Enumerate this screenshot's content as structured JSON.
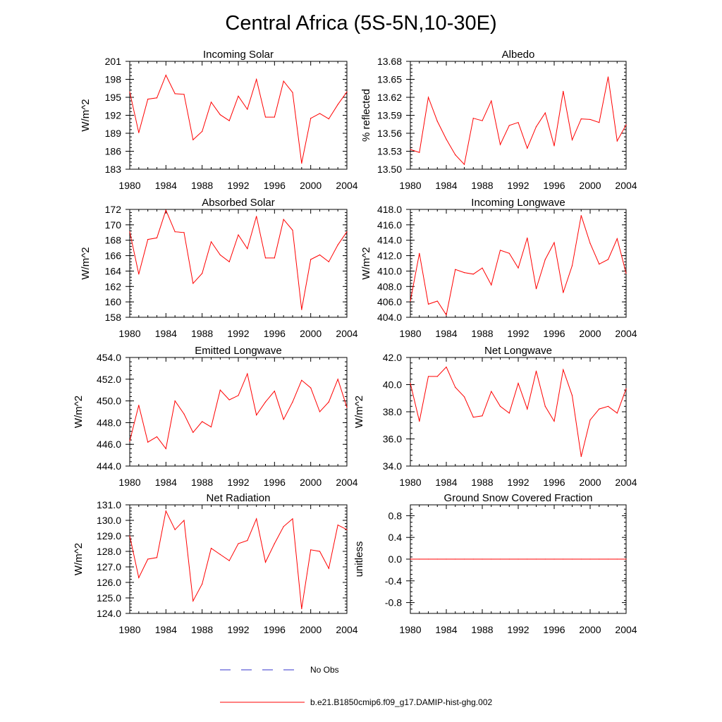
{
  "figure_title": "Central Africa (5S-5N,10-30E)",
  "colors": {
    "model_line": "#ff0000",
    "obs_line": "#3333cc",
    "axes": "#000000"
  },
  "legend": {
    "obs_label": "No Obs",
    "model_label": "b.e21.B1850cmip6.f09_g17.DAMIP-hist-ghg.002"
  },
  "chart_data": [
    {
      "type": "line",
      "title": "Incoming Solar",
      "ylabel": "W/m^2",
      "xlim": [
        1980,
        2004
      ],
      "ylim": [
        183,
        201
      ],
      "xticks": [
        "1980",
        "1984",
        "1988",
        "1992",
        "1996",
        "2000",
        "2004"
      ],
      "yticks": [
        "183",
        "186",
        "189",
        "192",
        "195",
        "198",
        "201"
      ],
      "x": [
        1980,
        1981,
        1982,
        1983,
        1984,
        1985,
        1986,
        1987,
        1988,
        1989,
        1990,
        1991,
        1992,
        1993,
        1994,
        1995,
        1996,
        1997,
        1998,
        1999,
        2000,
        2001,
        2002,
        2003,
        2004
      ],
      "series": [
        {
          "values": [
            195.9,
            189.1,
            194.7,
            194.9,
            198.7,
            195.6,
            195.5,
            187.9,
            189.3,
            194.2,
            192.1,
            191.1,
            195.2,
            193.0,
            198.0,
            191.7,
            191.7,
            197.7,
            195.8,
            184.0,
            191.5,
            192.3,
            191.4,
            193.8,
            195.9
          ]
        }
      ]
    },
    {
      "type": "line",
      "title": "Albedo",
      "ylabel": "% reflected",
      "xlim": [
        1980,
        2004
      ],
      "ylim": [
        13.5,
        13.68
      ],
      "xticks": [
        "1980",
        "1984",
        "1988",
        "1992",
        "1996",
        "2000",
        "2004"
      ],
      "yticks": [
        "13.50",
        "13.53",
        "13.56",
        "13.59",
        "13.62",
        "13.65",
        "13.68"
      ],
      "x": [
        1980,
        1981,
        1982,
        1983,
        1984,
        1985,
        1986,
        1987,
        1988,
        1989,
        1990,
        1991,
        1992,
        1993,
        1994,
        1995,
        1996,
        1997,
        1998,
        1999,
        2000,
        2001,
        2002,
        2003,
        2004
      ],
      "series": [
        {
          "values": [
            13.533,
            13.528,
            13.62,
            13.58,
            13.55,
            13.524,
            13.508,
            13.585,
            13.581,
            13.614,
            13.541,
            13.573,
            13.578,
            13.535,
            13.571,
            13.594,
            13.539,
            13.63,
            13.549,
            13.584,
            13.583,
            13.578,
            13.654,
            13.547,
            13.574
          ]
        }
      ]
    },
    {
      "type": "line",
      "title": "Absorbed Solar",
      "ylabel": "W/m^2",
      "xlim": [
        1980,
        2004
      ],
      "ylim": [
        158,
        172
      ],
      "xticks": [
        "1980",
        "1984",
        "1988",
        "1992",
        "1996",
        "2000",
        "2004"
      ],
      "yticks": [
        "158",
        "160",
        "162",
        "164",
        "166",
        "168",
        "170",
        "172"
      ],
      "x": [
        1980,
        1981,
        1982,
        1983,
        1984,
        1985,
        1986,
        1987,
        1988,
        1989,
        1990,
        1991,
        1992,
        1993,
        1994,
        1995,
        1996,
        1997,
        1998,
        1999,
        2000,
        2001,
        2002,
        2003,
        2004
      ],
      "series": [
        {
          "values": [
            169.1,
            163.6,
            168.1,
            168.3,
            171.9,
            169.1,
            169.0,
            162.4,
            163.7,
            167.8,
            166.1,
            165.2,
            168.7,
            166.9,
            171.1,
            165.7,
            165.7,
            170.7,
            169.3,
            159.0,
            165.5,
            166.1,
            165.2,
            167.4,
            169.1
          ]
        }
      ]
    },
    {
      "type": "line",
      "title": "Incoming Longwave",
      "ylabel": "W/m^2",
      "xlim": [
        1980,
        2004
      ],
      "ylim": [
        404,
        418
      ],
      "xticks": [
        "1980",
        "1984",
        "1988",
        "1992",
        "1996",
        "2000",
        "2004"
      ],
      "yticks": [
        "404.0",
        "406.0",
        "408.0",
        "410.0",
        "412.0",
        "414.0",
        "416.0",
        "418.0"
      ],
      "x": [
        1980,
        1981,
        1982,
        1983,
        1984,
        1985,
        1986,
        1987,
        1988,
        1989,
        1990,
        1991,
        1992,
        1993,
        1994,
        1995,
        1996,
        1997,
        1998,
        1999,
        2000,
        2001,
        2002,
        2003,
        2004
      ],
      "series": [
        {
          "values": [
            406.1,
            412.3,
            405.7,
            406.1,
            404.3,
            410.2,
            409.8,
            409.6,
            410.4,
            408.2,
            412.7,
            412.3,
            410.4,
            414.3,
            407.7,
            411.5,
            413.7,
            407.2,
            410.7,
            417.2,
            413.6,
            410.9,
            411.5,
            414.2,
            409.7
          ]
        }
      ]
    },
    {
      "type": "line",
      "title": "Emitted Longwave",
      "ylabel": "W/m^2",
      "xlim": [
        1980,
        2004
      ],
      "ylim": [
        444,
        454
      ],
      "xticks": [
        "1980",
        "1984",
        "1988",
        "1992",
        "1996",
        "2000",
        "2004"
      ],
      "yticks": [
        "444.0",
        "446.0",
        "448.0",
        "450.0",
        "452.0",
        "454.0"
      ],
      "x": [
        1980,
        1981,
        1982,
        1983,
        1984,
        1985,
        1986,
        1987,
        1988,
        1989,
        1990,
        1991,
        1992,
        1993,
        1994,
        1995,
        1996,
        1997,
        1998,
        1999,
        2000,
        2001,
        2002,
        2003,
        2004
      ],
      "series": [
        {
          "values": [
            446.3,
            449.6,
            446.2,
            446.7,
            445.6,
            450.0,
            448.8,
            447.1,
            448.1,
            447.6,
            451.0,
            450.1,
            450.5,
            452.5,
            448.7,
            449.9,
            450.9,
            448.3,
            449.9,
            451.9,
            451.2,
            449.0,
            449.9,
            452.0,
            449.4
          ]
        }
      ]
    },
    {
      "type": "line",
      "title": "Net Longwave",
      "ylabel": "W/m^2",
      "xlim": [
        1980,
        2004
      ],
      "ylim": [
        34,
        42
      ],
      "xticks": [
        "1980",
        "1984",
        "1988",
        "1992",
        "1996",
        "2000",
        "2004"
      ],
      "yticks": [
        "34.0",
        "36.0",
        "38.0",
        "40.0",
        "42.0"
      ],
      "x": [
        1980,
        1981,
        1982,
        1983,
        1984,
        1985,
        1986,
        1987,
        1988,
        1989,
        1990,
        1991,
        1992,
        1993,
        1994,
        1995,
        1996,
        1997,
        1998,
        1999,
        2000,
        2001,
        2002,
        2003,
        2004
      ],
      "series": [
        {
          "values": [
            40.1,
            37.3,
            40.6,
            40.6,
            41.3,
            39.8,
            39.1,
            37.6,
            37.7,
            39.5,
            38.4,
            37.9,
            40.1,
            38.2,
            41.0,
            38.4,
            37.3,
            41.1,
            39.2,
            34.7,
            37.4,
            38.2,
            38.4,
            37.9,
            39.7
          ]
        }
      ]
    },
    {
      "type": "line",
      "title": "Net Radiation",
      "ylabel": "W/m^2",
      "xlim": [
        1980,
        2004
      ],
      "ylim": [
        124,
        131
      ],
      "xticks": [
        "1980",
        "1984",
        "1988",
        "1992",
        "1996",
        "2000",
        "2004"
      ],
      "yticks": [
        "124.0",
        "125.0",
        "126.0",
        "127.0",
        "128.0",
        "129.0",
        "130.0",
        "131.0"
      ],
      "x": [
        1980,
        1981,
        1982,
        1983,
        1984,
        1985,
        1986,
        1987,
        1988,
        1989,
        1990,
        1991,
        1992,
        1993,
        1994,
        1995,
        1996,
        1997,
        1998,
        1999,
        2000,
        2001,
        2002,
        2003,
        2004
      ],
      "series": [
        {
          "values": [
            129.0,
            126.3,
            127.5,
            127.6,
            130.6,
            129.4,
            130.0,
            124.8,
            125.9,
            128.2,
            127.8,
            127.4,
            128.5,
            128.7,
            130.1,
            127.3,
            128.5,
            129.6,
            130.1,
            124.3,
            128.1,
            128.0,
            126.9,
            129.7,
            129.4
          ]
        }
      ]
    },
    {
      "type": "line",
      "title": "Ground Snow Covered Fraction",
      "ylabel": "unitless",
      "xlim": [
        1980,
        2004
      ],
      "ylim": [
        -1.0,
        1.0
      ],
      "xticks": [
        "1980",
        "1984",
        "1988",
        "1992",
        "1996",
        "2000",
        "2004"
      ],
      "yticks": [
        "-0.8",
        "-0.4",
        "0.0",
        "0.4",
        "0.8"
      ],
      "ytick_values": [
        -0.8,
        -0.4,
        0.0,
        0.4,
        0.8
      ],
      "x": [
        1980,
        1981,
        1982,
        1983,
        1984,
        1985,
        1986,
        1987,
        1988,
        1989,
        1990,
        1991,
        1992,
        1993,
        1994,
        1995,
        1996,
        1997,
        1998,
        1999,
        2000,
        2001,
        2002,
        2003,
        2004
      ],
      "series": [
        {
          "values": [
            0,
            0,
            0,
            0,
            0,
            0,
            0,
            0,
            0,
            0,
            0,
            0,
            0,
            0,
            0,
            0,
            0,
            0,
            0,
            0,
            0,
            0,
            0,
            0,
            0
          ]
        }
      ]
    }
  ]
}
